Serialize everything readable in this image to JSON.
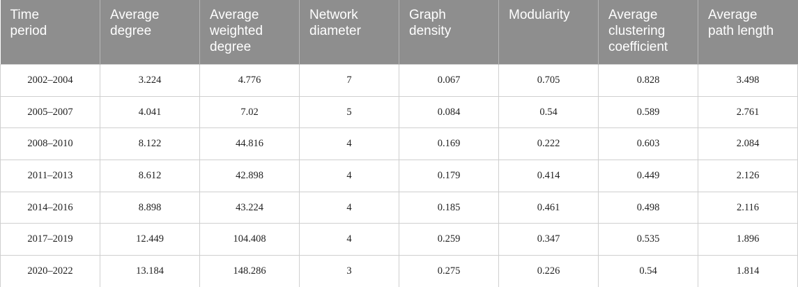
{
  "table": {
    "header": [
      [
        "Time",
        "period"
      ],
      [
        "Average",
        "degree"
      ],
      [
        "Average",
        "weighted",
        "degree"
      ],
      [
        "Network",
        "diameter"
      ],
      [
        "Graph",
        "density"
      ],
      [
        "Modularity"
      ],
      [
        "Average",
        "clustering",
        "coefficient"
      ],
      [
        "Average",
        "path length"
      ]
    ],
    "rows": [
      [
        "2002–2004",
        "3.224",
        "4.776",
        "7",
        "0.067",
        "0.705",
        "0.828",
        "3.498"
      ],
      [
        "2005–2007",
        "4.041",
        "7.02",
        "5",
        "0.084",
        "0.54",
        "0.589",
        "2.761"
      ],
      [
        "2008–2010",
        "8.122",
        "44.816",
        "4",
        "0.169",
        "0.222",
        "0.603",
        "2.084"
      ],
      [
        "2011–2013",
        "8.612",
        "42.898",
        "4",
        "0.179",
        "0.414",
        "0.449",
        "2.126"
      ],
      [
        "2014–2016",
        "8.898",
        "43.224",
        "4",
        "0.185",
        "0.461",
        "0.498",
        "2.116"
      ],
      [
        "2017–2019",
        "12.449",
        "104.408",
        "4",
        "0.259",
        "0.347",
        "0.535",
        "1.896"
      ],
      [
        "2020–2022",
        "13.184",
        "148.286",
        "3",
        "0.275",
        "0.226",
        "0.54",
        "1.814"
      ]
    ]
  }
}
